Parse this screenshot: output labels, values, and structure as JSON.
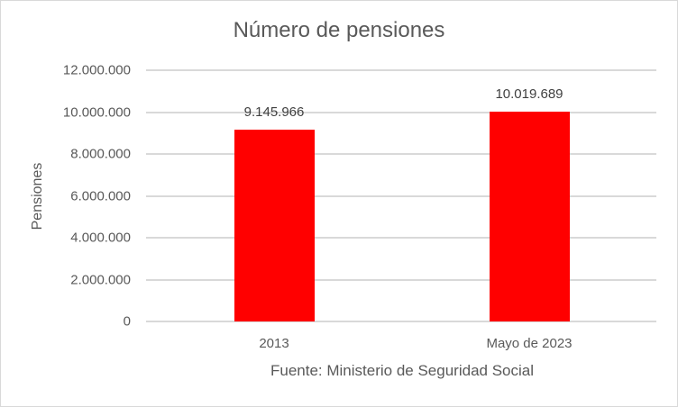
{
  "chart_data": {
    "type": "bar",
    "title": "Número de pensiones",
    "xlabel": "Fuente: Ministerio de Seguridad Social",
    "ylabel": "Pensiones",
    "categories": [
      "2013",
      "Mayo de 2023"
    ],
    "values": [
      9145966,
      10019689
    ],
    "value_labels": [
      "9.145.966",
      "10.019.689"
    ],
    "ylim": [
      0,
      12000000
    ],
    "yticks": [
      0,
      2000000,
      4000000,
      6000000,
      8000000,
      10000000,
      12000000
    ],
    "ytick_labels": [
      "0",
      "2.000.000",
      "4.000.000",
      "6.000.000",
      "8.000.000",
      "10.000.000",
      "12.000.000"
    ],
    "grid": true,
    "legend": "none",
    "bar_color": "#ff0000"
  }
}
